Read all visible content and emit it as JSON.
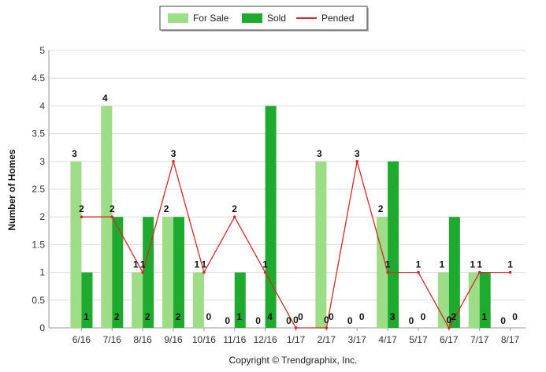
{
  "chart_data": {
    "type": "bar",
    "title": "",
    "xlabel": "",
    "ylabel": "Number of Homes",
    "ylim": [
      0,
      5
    ],
    "yticks": [
      "0",
      "0.5",
      "1",
      "1.5",
      "2",
      "2.5",
      "3",
      "3.5",
      "4",
      "4.5",
      "5"
    ],
    "grid": true,
    "legend_position": "top-center",
    "categories": [
      "6/16",
      "7/16",
      "8/16",
      "9/16",
      "10/16",
      "11/16",
      "12/16",
      "1/17",
      "2/17",
      "3/17",
      "4/17",
      "5/17",
      "6/17",
      "7/17",
      "8/17"
    ],
    "series": [
      {
        "name": "For Sale",
        "kind": "bar",
        "color": "#9ddd86",
        "values": [
          3,
          4,
          1,
          2,
          1,
          0,
          0,
          0,
          3,
          0,
          2,
          0,
          1,
          1,
          0
        ]
      },
      {
        "name": "Sold",
        "kind": "bar",
        "color": "#1daa2f",
        "values": [
          1,
          2,
          2,
          2,
          0,
          1,
          4,
          0,
          0,
          0,
          3,
          0,
          2,
          1,
          0
        ]
      },
      {
        "name": "Pended",
        "kind": "line",
        "color": "#d62828",
        "values": [
          2,
          2,
          1,
          3,
          1,
          2,
          1,
          0,
          0,
          3,
          1,
          1,
          0,
          1,
          1
        ]
      }
    ],
    "footer": "Copyright © Trendgraphix, Inc."
  }
}
